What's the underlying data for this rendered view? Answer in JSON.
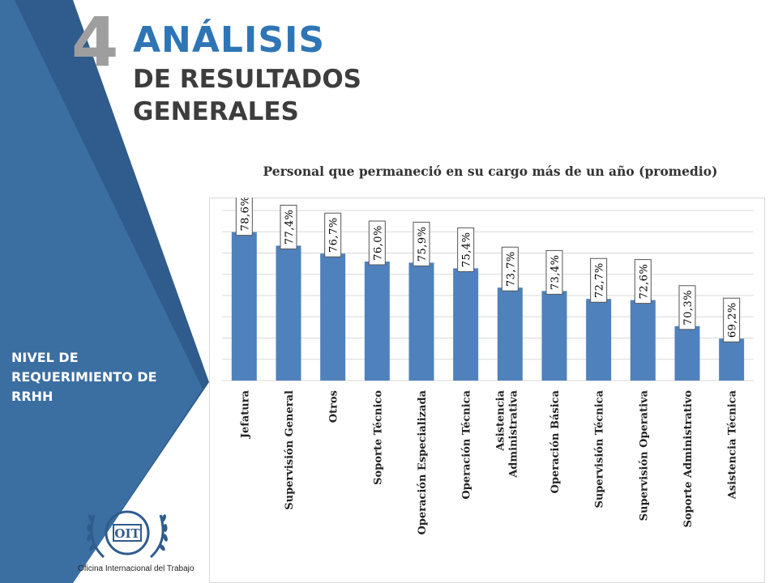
{
  "header": {
    "section_number": "4",
    "title_line1": "ANÁLISIS",
    "title_line2": "DE RESULTADOS",
    "title_line3": "GENERALES"
  },
  "sidebar": {
    "text": "NIVEL DE REQUERIMIENTO DE RRHH",
    "logo_caption": "Oficina Internacional del Trabajo",
    "logo_letters": "OIT"
  },
  "colors": {
    "sidebar_dark": "#2f5c8c",
    "sidebar_light": "#3b6ea1",
    "title_blue": "#2e75b6",
    "bar": "#4f81bd"
  },
  "chart_data": {
    "type": "bar",
    "title": "Personal que permaneció en su cargo más de un año (promedio)",
    "categories": [
      "Jefatura",
      "Supervisión General",
      "Otros",
      "Soporte Técnico",
      "Operación Especializada",
      "Operación Técnica",
      "Asistencia Administrativa",
      "Operación Básica",
      "Supervisión Técnica",
      "Supervisión Operativa",
      "Soporte Administrativo",
      "Asistencia Técnica"
    ],
    "values": [
      78.6,
      77.4,
      76.7,
      76.0,
      75.9,
      75.4,
      73.7,
      73.4,
      72.7,
      72.6,
      70.3,
      69.2
    ],
    "value_labels": [
      "78,6%",
      "77,4%",
      "76,7%",
      "76,0%",
      "75,9%",
      "75,4%",
      "73,7%",
      "73,4%",
      "72,7%",
      "72,6%",
      "70,3%",
      "69,2%"
    ],
    "ylim": [
      65.5,
      80.5
    ],
    "grid": true,
    "legend": "none"
  }
}
